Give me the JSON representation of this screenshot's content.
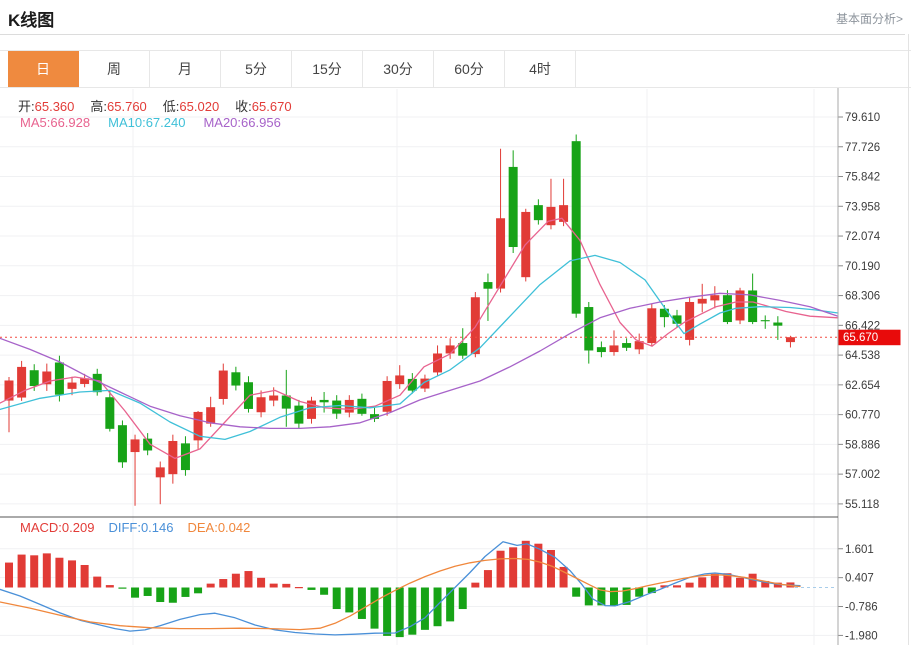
{
  "header": {
    "title": "K线图",
    "analysis_link": "基本面分析>"
  },
  "tabs": {
    "items": [
      {
        "key": "day",
        "label": "日",
        "active": true
      },
      {
        "key": "week",
        "label": "周",
        "active": false
      },
      {
        "key": "month",
        "label": "月",
        "active": false
      },
      {
        "key": "m5",
        "label": "5分",
        "active": false
      },
      {
        "key": "m15",
        "label": "15分",
        "active": false
      },
      {
        "key": "m30",
        "label": "30分",
        "active": false
      },
      {
        "key": "m60",
        "label": "60分",
        "active": false
      },
      {
        "key": "h4",
        "label": "4时",
        "active": false
      }
    ]
  },
  "quote_bar": {
    "items": [
      {
        "key": "open",
        "label": "开:",
        "value": "65.360"
      },
      {
        "key": "high",
        "label": "高:",
        "value": "65.760"
      },
      {
        "key": "low",
        "label": "低:",
        "value": "65.020"
      },
      {
        "key": "close",
        "label": "收:",
        "value": "65.670"
      }
    ],
    "value_color": "#e23c38"
  },
  "ma_bar": {
    "items": [
      {
        "key": "ma5",
        "label": "MA5:",
        "value": "66.928",
        "color": "#e8638f"
      },
      {
        "key": "ma10",
        "label": "MA10:",
        "value": "67.240",
        "color": "#3fc0d8"
      },
      {
        "key": "ma20",
        "label": "MA20:",
        "value": "66.956",
        "color": "#a763c9"
      }
    ]
  },
  "macd_bar": {
    "items": [
      {
        "key": "macd",
        "label": "MACD:",
        "value": "0.209",
        "color": "#e23c38"
      },
      {
        "key": "diff",
        "label": "DIFF:",
        "value": "0.146",
        "color": "#4a90d8"
      },
      {
        "key": "dea",
        "label": "DEA:",
        "value": "0.042",
        "color": "#f0873c"
      }
    ]
  },
  "chart_data": {
    "type": "candlestick",
    "title": "K线图 (日)",
    "price_axis_ticks": [
      79.61,
      77.726,
      75.842,
      73.958,
      72.074,
      70.19,
      68.306,
      66.422,
      64.538,
      62.654,
      60.77,
      58.886,
      57.002,
      55.118
    ],
    "price_range": [
      55.118,
      79.61
    ],
    "last_price": "65.670",
    "last_price_value": 65.67,
    "grid_vertical_x": [
      133,
      397,
      647,
      814
    ],
    "candles": [
      [
        61.66,
        63.15,
        59.65,
        62.93
      ],
      [
        61.85,
        64.17,
        61.64,
        63.79
      ],
      [
        63.58,
        63.96,
        62.27,
        62.58
      ],
      [
        62.69,
        64.0,
        62.27,
        63.5
      ],
      [
        64.07,
        64.5,
        61.6,
        62.03
      ],
      [
        62.4,
        63.17,
        62.0,
        62.8
      ],
      [
        62.71,
        63.35,
        62.5,
        63.07
      ],
      [
        63.35,
        63.67,
        61.97,
        62.19
      ],
      [
        61.87,
        62.3,
        59.7,
        59.87
      ],
      [
        60.1,
        60.4,
        57.4,
        57.75
      ],
      [
        58.4,
        59.5,
        55.0,
        59.2
      ],
      [
        59.25,
        59.6,
        58.2,
        58.5
      ],
      [
        56.8,
        57.8,
        55.1,
        57.43
      ],
      [
        57.0,
        59.5,
        56.4,
        59.1
      ],
      [
        58.95,
        59.4,
        56.9,
        57.26
      ],
      [
        59.14,
        61.0,
        58.6,
        60.94
      ],
      [
        60.2,
        61.9,
        60.0,
        61.24
      ],
      [
        61.76,
        64.0,
        61.4,
        63.56
      ],
      [
        63.45,
        63.8,
        62.3,
        62.61
      ],
      [
        62.82,
        63.2,
        60.9,
        61.13
      ],
      [
        60.92,
        62.3,
        60.6,
        61.87
      ],
      [
        61.66,
        62.5,
        61.3,
        61.98
      ],
      [
        61.98,
        63.6,
        60.0,
        61.15
      ],
      [
        61.34,
        61.7,
        59.9,
        60.2
      ],
      [
        60.5,
        61.9,
        60.2,
        61.66
      ],
      [
        61.7,
        62.2,
        60.9,
        61.55
      ],
      [
        61.66,
        62.0,
        60.5,
        60.83
      ],
      [
        60.9,
        62.0,
        60.6,
        61.7
      ],
      [
        61.77,
        62.1,
        60.7,
        60.82
      ],
      [
        60.8,
        61.2,
        60.3,
        60.5
      ],
      [
        60.95,
        63.2,
        60.7,
        62.9
      ],
      [
        62.7,
        63.9,
        62.4,
        63.25
      ],
      [
        63.03,
        63.4,
        62.1,
        62.29
      ],
      [
        62.42,
        63.3,
        62.2,
        63.05
      ],
      [
        63.44,
        65.15,
        63.2,
        64.64
      ],
      [
        64.64,
        65.6,
        64.3,
        65.15
      ],
      [
        65.3,
        66.24,
        64.3,
        64.5
      ],
      [
        64.6,
        68.53,
        64.4,
        68.2
      ],
      [
        69.16,
        69.7,
        66.7,
        68.74
      ],
      [
        68.75,
        77.6,
        68.5,
        73.2
      ],
      [
        76.45,
        77.5,
        71.0,
        71.38
      ],
      [
        69.47,
        73.8,
        69.2,
        73.6
      ],
      [
        74.03,
        74.4,
        72.8,
        73.08
      ],
      [
        72.76,
        75.7,
        72.5,
        73.92
      ],
      [
        72.97,
        75.7,
        72.7,
        74.03
      ],
      [
        78.08,
        78.5,
        66.9,
        67.16
      ],
      [
        67.58,
        67.9,
        64.0,
        64.83
      ],
      [
        65.04,
        65.4,
        64.4,
        64.73
      ],
      [
        64.73,
        66.1,
        64.5,
        65.15
      ],
      [
        65.3,
        65.6,
        64.8,
        65.0
      ],
      [
        64.9,
        65.9,
        64.6,
        65.42
      ],
      [
        65.3,
        67.8,
        65.1,
        67.5
      ],
      [
        67.47,
        67.7,
        66.3,
        66.94
      ],
      [
        67.05,
        67.4,
        66.3,
        66.52
      ],
      [
        65.5,
        68.2,
        65.15,
        67.9
      ],
      [
        67.8,
        69.05,
        67.25,
        68.1
      ],
      [
        68.0,
        68.9,
        67.5,
        68.33
      ],
      [
        68.33,
        68.65,
        66.5,
        66.63
      ],
      [
        66.73,
        68.8,
        66.5,
        68.63
      ],
      [
        68.63,
        69.7,
        66.5,
        66.63
      ],
      [
        66.75,
        67.05,
        66.2,
        66.68
      ],
      [
        66.6,
        67.0,
        65.5,
        66.4
      ],
      [
        65.36,
        65.76,
        65.02,
        65.67
      ]
    ],
    "ma5_line": [
      [
        0,
        61.5
      ],
      [
        25,
        62.3
      ],
      [
        50,
        62.9
      ],
      [
        75,
        63.15
      ],
      [
        100,
        62.9
      ],
      [
        125,
        61.0
      ],
      [
        150,
        58.9
      ],
      [
        175,
        58.0
      ],
      [
        200,
        58.6
      ],
      [
        225,
        60.3
      ],
      [
        250,
        62.0
      ],
      [
        275,
        62.3
      ],
      [
        300,
        61.6
      ],
      [
        325,
        61.2
      ],
      [
        350,
        61.1
      ],
      [
        375,
        61.3
      ],
      [
        400,
        62.0
      ],
      [
        424,
        63.8
      ],
      [
        450,
        64.6
      ],
      [
        475,
        66.3
      ],
      [
        500,
        68.9
      ],
      [
        525,
        71.5
      ],
      [
        548,
        73.0
      ],
      [
        562,
        73.2
      ],
      [
        580,
        71.8
      ],
      [
        600,
        69.0
      ],
      [
        620,
        66.6
      ],
      [
        636,
        65.5
      ],
      [
        652,
        65.1
      ],
      [
        668,
        65.9
      ],
      [
        684,
        66.6
      ],
      [
        700,
        67.1
      ],
      [
        716,
        67.6
      ],
      [
        736,
        67.9
      ],
      [
        753,
        67.9
      ],
      [
        786,
        67.3
      ],
      [
        810,
        67.0
      ],
      [
        838,
        66.9
      ]
    ],
    "ma10_line": [
      [
        0,
        61.1
      ],
      [
        40,
        61.8
      ],
      [
        80,
        62.2
      ],
      [
        110,
        62.3
      ],
      [
        140,
        61.5
      ],
      [
        170,
        60.3
      ],
      [
        200,
        59.4
      ],
      [
        225,
        59.2
      ],
      [
        250,
        59.7
      ],
      [
        280,
        60.6
      ],
      [
        310,
        61.2
      ],
      [
        340,
        61.35
      ],
      [
        370,
        61.2
      ],
      [
        400,
        61.45
      ],
      [
        424,
        62.8
      ],
      [
        450,
        63.6
      ],
      [
        480,
        65.0
      ],
      [
        510,
        67.0
      ],
      [
        540,
        69.0
      ],
      [
        570,
        70.5
      ],
      [
        595,
        70.85
      ],
      [
        620,
        70.4
      ],
      [
        645,
        69.3
      ],
      [
        665,
        67.5
      ],
      [
        684,
        65.9
      ],
      [
        700,
        66.5
      ],
      [
        720,
        67.2
      ],
      [
        736,
        67.5
      ],
      [
        760,
        67.6
      ],
      [
        790,
        67.55
      ],
      [
        815,
        67.4
      ],
      [
        838,
        67.2
      ]
    ],
    "ma20_line": [
      [
        0,
        65.6
      ],
      [
        30,
        64.9
      ],
      [
        60,
        64.1
      ],
      [
        90,
        63.1
      ],
      [
        120,
        62.2
      ],
      [
        150,
        61.3
      ],
      [
        180,
        60.7
      ],
      [
        210,
        60.25
      ],
      [
        240,
        60.0
      ],
      [
        270,
        59.9
      ],
      [
        300,
        59.9
      ],
      [
        330,
        60.0
      ],
      [
        360,
        60.25
      ],
      [
        390,
        60.9
      ],
      [
        420,
        61.7
      ],
      [
        450,
        62.3
      ],
      [
        480,
        62.9
      ],
      [
        510,
        63.8
      ],
      [
        540,
        64.8
      ],
      [
        570,
        65.9
      ],
      [
        600,
        66.9
      ],
      [
        630,
        67.5
      ],
      [
        660,
        67.9
      ],
      [
        690,
        68.2
      ],
      [
        720,
        68.45
      ],
      [
        750,
        68.35
      ],
      [
        780,
        68.0
      ],
      [
        810,
        67.6
      ],
      [
        838,
        67.0
      ]
    ],
    "macd": {
      "axis_ticks": [
        1.601,
        0.407,
        -0.786,
        -1.98
      ],
      "histogram": [
        1.03,
        1.36,
        1.33,
        1.41,
        1.23,
        1.12,
        0.93,
        0.45,
        0.1,
        -0.02,
        -0.42,
        -0.35,
        -0.6,
        -0.63,
        -0.39,
        -0.24,
        0.16,
        0.35,
        0.57,
        0.68,
        0.4,
        0.16,
        0.15,
        0.02,
        -0.1,
        -0.3,
        -0.89,
        -1.03,
        -1.3,
        -1.7,
        -2.0,
        -2.05,
        -1.95,
        -1.75,
        -1.6,
        -1.4,
        -0.89,
        0.2,
        0.72,
        1.52,
        1.66,
        1.93,
        1.81,
        1.55,
        0.85,
        -0.38,
        -0.74,
        -0.74,
        -0.76,
        -0.72,
        -0.38,
        -0.23,
        0.09,
        0.09,
        0.2,
        0.42,
        0.57,
        0.59,
        0.4,
        0.57,
        0.27,
        0.2,
        0.209
      ],
      "diff_line": [
        [
          0,
          -0.08
        ],
        [
          20,
          -0.35
        ],
        [
          40,
          -0.7
        ],
        [
          60,
          -1.05
        ],
        [
          80,
          -1.35
        ],
        [
          100,
          -1.55
        ],
        [
          115,
          -1.7
        ],
        [
          130,
          -1.8
        ],
        [
          145,
          -1.75
        ],
        [
          160,
          -1.58
        ],
        [
          180,
          -1.32
        ],
        [
          200,
          -1.12
        ],
        [
          215,
          -1.06
        ],
        [
          235,
          -1.25
        ],
        [
          255,
          -1.55
        ],
        [
          275,
          -1.75
        ],
        [
          295,
          -1.86
        ],
        [
          315,
          -1.92
        ],
        [
          335,
          -1.96
        ],
        [
          355,
          -1.93
        ],
        [
          375,
          -1.89
        ],
        [
          395,
          -1.88
        ],
        [
          410,
          -1.62
        ],
        [
          425,
          -1.25
        ],
        [
          440,
          -0.62
        ],
        [
          455,
          0.0
        ],
        [
          470,
          0.62
        ],
        [
          485,
          1.28
        ],
        [
          503,
          1.89
        ],
        [
          517,
          1.74
        ],
        [
          527,
          1.8
        ],
        [
          540,
          1.58
        ],
        [
          555,
          1.25
        ],
        [
          570,
          0.7
        ],
        [
          582,
          0.12
        ],
        [
          593,
          -0.48
        ],
        [
          605,
          -0.75
        ],
        [
          615,
          -0.76
        ],
        [
          630,
          -0.58
        ],
        [
          645,
          -0.32
        ],
        [
          660,
          -0.08
        ],
        [
          675,
          0.18
        ],
        [
          690,
          0.42
        ],
        [
          705,
          0.56
        ],
        [
          715,
          0.6
        ],
        [
          728,
          0.54
        ],
        [
          740,
          0.44
        ],
        [
          753,
          0.32
        ],
        [
          766,
          0.21
        ],
        [
          780,
          0.12
        ],
        [
          800,
          0.08
        ]
      ],
      "dea_line": [
        [
          0,
          -0.6
        ],
        [
          30,
          -0.85
        ],
        [
          60,
          -1.15
        ],
        [
          90,
          -1.42
        ],
        [
          120,
          -1.58
        ],
        [
          150,
          -1.66
        ],
        [
          180,
          -1.7
        ],
        [
          210,
          -1.7
        ],
        [
          240,
          -1.68
        ],
        [
          270,
          -1.7
        ],
        [
          300,
          -1.74
        ],
        [
          320,
          -1.68
        ],
        [
          335,
          -1.48
        ],
        [
          350,
          -1.18
        ],
        [
          365,
          -0.82
        ],
        [
          380,
          -0.45
        ],
        [
          395,
          -0.12
        ],
        [
          410,
          0.18
        ],
        [
          425,
          0.45
        ],
        [
          440,
          0.68
        ],
        [
          455,
          0.88
        ],
        [
          470,
          1.02
        ],
        [
          485,
          1.12
        ],
        [
          500,
          1.18
        ],
        [
          515,
          1.2
        ],
        [
          528,
          1.16
        ],
        [
          540,
          1.05
        ],
        [
          552,
          0.88
        ],
        [
          565,
          0.62
        ],
        [
          578,
          0.35
        ],
        [
          590,
          0.1
        ],
        [
          600,
          -0.1
        ],
        [
          610,
          -0.17
        ],
        [
          622,
          -0.15
        ],
        [
          635,
          -0.05
        ],
        [
          648,
          0.08
        ],
        [
          660,
          0.18
        ],
        [
          672,
          0.28
        ],
        [
          684,
          0.38
        ],
        [
          696,
          0.46
        ],
        [
          708,
          0.51
        ],
        [
          720,
          0.52
        ],
        [
          732,
          0.48
        ],
        [
          744,
          0.42
        ],
        [
          756,
          0.33
        ],
        [
          768,
          0.23
        ],
        [
          780,
          0.14
        ],
        [
          792,
          0.07
        ],
        [
          800,
          0.04
        ]
      ]
    },
    "colors": {
      "up": "#e13b36",
      "down": "#17a317",
      "ma5": "#e8638f",
      "ma10": "#3fc0d8",
      "ma20": "#a763c9",
      "diff": "#4a90d8",
      "dea": "#f0873c",
      "badge_bg": "#e80b0b",
      "badge_text": "#ffffff",
      "dotted_line": "#f34b42",
      "grid": "#f0f1f3",
      "axis_line": "#a8a8a8",
      "axis_text": "#3c3c3c",
      "pane_divider": "#555555",
      "zero_dash": "#a8cdea"
    }
  }
}
